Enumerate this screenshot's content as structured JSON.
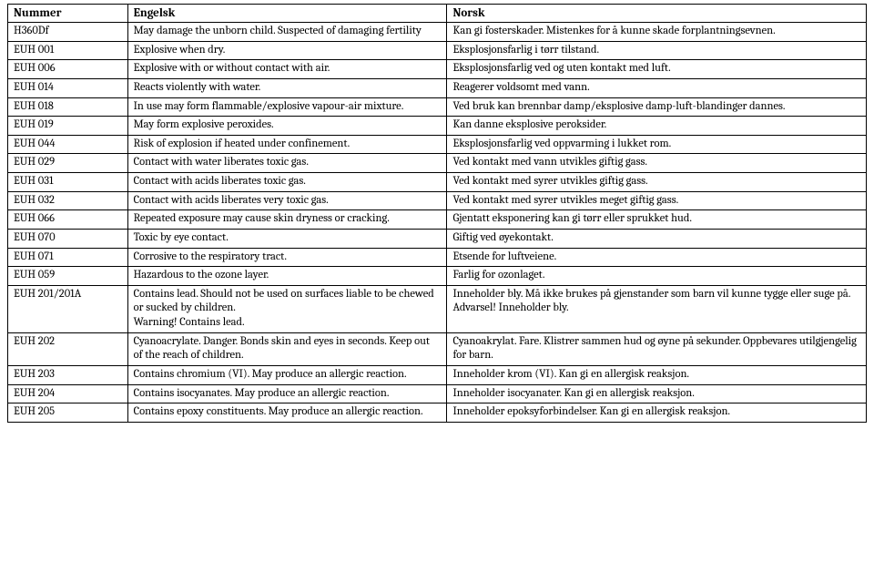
{
  "table": {
    "columns": [
      "Nummer",
      "Engelsk",
      "Norsk"
    ],
    "rows": [
      [
        "H360Df",
        "May damage the unborn child. Suspected of damaging fertility",
        "Kan gi fosterskader. Mistenkes for å kunne skade forplantningsevnen."
      ],
      [
        "EUH 001",
        "Explosive when dry.",
        "Eksplosjonsfarlig i tørr tilstand."
      ],
      [
        "EUH 006",
        "Explosive with or without contact with air.",
        "Eksplosjonsfarlig ved og uten kontakt med luft."
      ],
      [
        "EUH 014",
        "Reacts violently with water.",
        "Reagerer voldsomt med vann."
      ],
      [
        "EUH 018",
        "In use may form flammable/explosive vapour-air mixture.",
        "Ved bruk kan brennbar damp/eksplosive damp-luft-blandinger dannes."
      ],
      [
        "EUH 019",
        "May form explosive peroxides.",
        "Kan danne eksplosive peroksider."
      ],
      [
        "EUH 044",
        "Risk of explosion if heated under confinement.",
        "Eksplosjonsfarlig ved oppvarming i lukket rom."
      ],
      [
        "EUH 029",
        "Contact with water liberates toxic gas.",
        "Ved kontakt med vann utvikles giftig gass."
      ],
      [
        "EUH 031",
        "Contact with acids liberates toxic gas.",
        "Ved kontakt med syrer utvikles giftig gass."
      ],
      [
        "EUH 032",
        "Contact with acids liberates very toxic gas.",
        "Ved kontakt med syrer utvikles meget giftig gass."
      ],
      [
        "EUH 066",
        "Repeated exposure may cause skin dryness or cracking.",
        "Gjentatt eksponering kan gi tørr eller sprukket hud."
      ],
      [
        "EUH 070",
        "Toxic by eye contact.",
        "Giftig ved øyekontakt."
      ],
      [
        "EUH 071",
        "Corrosive to the respiratory tract.",
        "Etsende for luftveiene."
      ],
      [
        "EUH 059",
        "Hazardous to the ozone layer.",
        "Farlig for ozonlaget."
      ],
      [
        "EUH 201/201A",
        "Contains lead. Should not be used on surfaces liable to be chewed or sucked by children.\nWarning! Contains lead.",
        "Inneholder bly. Må ikke brukes på gjenstander som barn vil kunne tygge eller suge på. Advarsel! Inneholder bly."
      ],
      [
        "EUH 202",
        "Cyanoacrylate. Danger. Bonds skin and eyes in seconds. Keep out of the reach of children.",
        "Cyanoakrylat. Fare. Klistrer sammen hud og øyne på sekunder. Oppbevares utilgjengelig for barn."
      ],
      [
        "EUH 203",
        "Contains chromium (VI). May produce an allergic reaction.",
        "Inneholder krom (VI). Kan gi en allergisk reaksjon."
      ],
      [
        "EUH 204",
        "Contains isocyanates. May produce an allergic reaction.",
        "Inneholder isocyanater. Kan gi en allergisk reaksjon."
      ],
      [
        "EUH 205",
        "Contains epoxy constituents. May produce an allergic reaction.",
        "Inneholder epoksyforbindelser. Kan gi en allergisk reaksjon."
      ]
    ]
  }
}
